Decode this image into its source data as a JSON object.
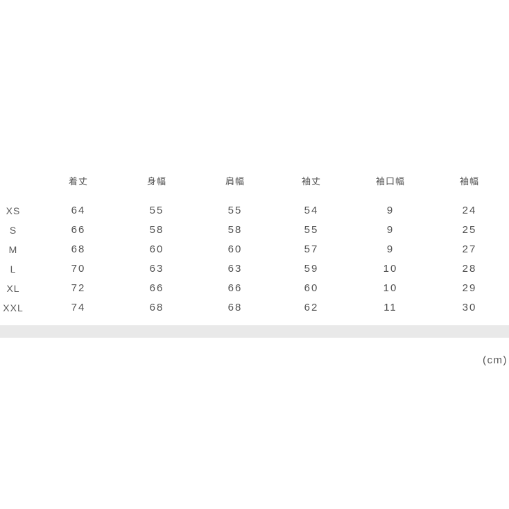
{
  "chart_data": {
    "type": "table",
    "title": "size-chart",
    "columns": [
      "着丈",
      "身幅",
      "肩幅",
      "袖丈",
      "袖口幅",
      "袖幅"
    ],
    "rows": [
      {
        "size": "XS",
        "values": [
          64,
          55,
          55,
          54,
          9,
          24
        ]
      },
      {
        "size": "S",
        "values": [
          66,
          58,
          58,
          55,
          9,
          25
        ]
      },
      {
        "size": "M",
        "values": [
          68,
          60,
          60,
          57,
          9,
          27
        ]
      },
      {
        "size": "L",
        "values": [
          70,
          63,
          63,
          59,
          10,
          28
        ]
      },
      {
        "size": "XL",
        "values": [
          72,
          66,
          66,
          60,
          10,
          29
        ]
      },
      {
        "size": "XXL",
        "values": [
          74,
          68,
          68,
          62,
          11,
          30
        ]
      }
    ],
    "unit": "cm",
    "layout_hints": {
      "grid": false,
      "header_position": "top",
      "row_header_position": "left"
    }
  },
  "unit_label": "(cm)",
  "colors": {
    "background": "#ffffff",
    "text": "#515151",
    "divider_band": "#e9e9e9"
  }
}
